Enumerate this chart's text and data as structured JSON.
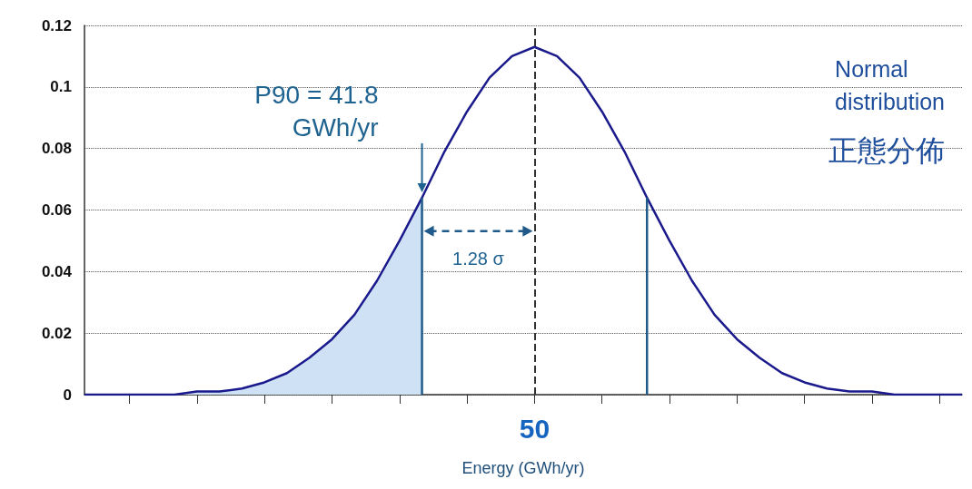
{
  "chart_data": {
    "type": "line",
    "xlabel": "Energy (GWh/yr)",
    "categories": [
      null,
      null,
      null,
      null,
      null,
      null,
      null,
      null,
      null,
      null,
      null,
      null,
      null,
      null,
      null,
      null,
      null,
      null,
      null,
      null,
      "50",
      null,
      null,
      null,
      null,
      null,
      null,
      null,
      null,
      null,
      null,
      null,
      null,
      null,
      null,
      null,
      null,
      null,
      null,
      null
    ],
    "ylim": [
      0,
      0.12
    ],
    "yticks": [
      0,
      0.02,
      0.04,
      0.06,
      0.08,
      0.1,
      0.12
    ],
    "grid": "y",
    "marker": "none",
    "series": [
      {
        "type": "area",
        "color": "#cfe2f5",
        "values": [
          0,
          0,
          0,
          0,
          0,
          0.001,
          0.001,
          0.002,
          0.004,
          0.007,
          0.012,
          0.018,
          0.026,
          0.037,
          0.05,
          0.064,
          null,
          null,
          null,
          null,
          null,
          null,
          null,
          null,
          null,
          null,
          null,
          null,
          null,
          null,
          null,
          null,
          null,
          null,
          null,
          null,
          null,
          null,
          null,
          null
        ]
      },
      {
        "color": "#1a1a8c",
        "values": [
          0,
          0,
          0,
          0,
          0,
          0.001,
          0.001,
          0.002,
          0.004,
          0.007,
          0.012,
          0.018,
          0.026,
          0.037,
          0.05,
          0.064,
          0.079,
          0.092,
          0.103,
          0.11,
          0.113,
          0.11,
          0.103,
          0.092,
          0.079,
          0.064,
          0.05,
          0.037,
          0.026,
          0.018,
          0.012,
          0.007,
          0.004,
          0.002,
          0.001,
          0.001,
          0,
          0,
          0,
          0
        ]
      },
      {
        "type": "bar",
        "color": "#1f5a8a",
        "values": [
          null,
          null,
          null,
          null,
          null,
          null,
          null,
          null,
          null,
          null,
          null,
          null,
          null,
          null,
          null,
          0.064,
          null,
          null,
          null,
          null,
          null,
          null,
          null,
          null,
          null,
          0.064,
          null,
          null,
          null,
          null,
          null,
          null,
          null,
          null,
          null,
          null,
          null,
          null,
          null,
          null
        ]
      }
    ],
    "ref_lines": [
      {
        "axis": "x",
        "value": "50",
        "color": "#333333",
        "line_style": "dashed"
      }
    ],
    "annotations": [
      "P90 = 41.8\nGWh/yr",
      "1.28 σ",
      "Normal\ndistribution",
      "正態分佈"
    ]
  }
}
